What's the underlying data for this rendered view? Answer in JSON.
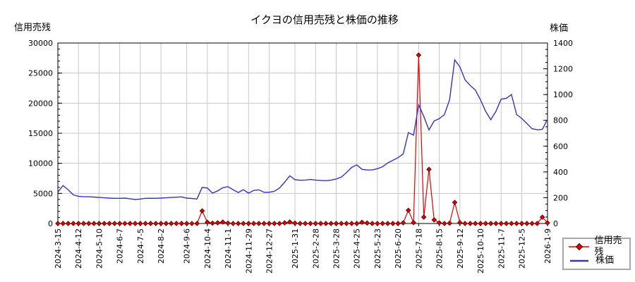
{
  "title": "イクヨの信用売残と株価の推移",
  "colors": {
    "credit_line": "#e60000",
    "credit_marker_fill": "#e60000",
    "credit_marker_edge": "#4d0000",
    "price_line": "#3333cc",
    "grid": "#c8c8c8",
    "axis": "#000000",
    "background": "#ffffff",
    "legend_border": "#a8a8a8"
  },
  "legend": {
    "items": [
      {
        "label": "信用売残",
        "marker": "diamond-on-line"
      },
      {
        "label": "株価",
        "marker": "line"
      }
    ]
  },
  "chart_data": {
    "type": "line",
    "title": "イクヨの信用売残と株価の推移",
    "weeks_total": 96,
    "grid": "on",
    "legend_position": "bottom-right-outside",
    "left_axis": {
      "label": "信用売残",
      "min": 0,
      "max": 30000,
      "major_ticks": [
        0,
        5000,
        10000,
        15000,
        20000,
        25000,
        30000
      ],
      "minor_step": 1000
    },
    "right_axis": {
      "label": "株価",
      "min": 0,
      "max": 1400,
      "major_ticks": [
        0,
        200,
        400,
        600,
        800,
        1000,
        1200,
        1400
      ],
      "minor_step": 50
    },
    "x_tick_labels": [
      {
        "text": "2024-3-15",
        "week": 0
      },
      {
        "text": "2024-4-12",
        "week": 4
      },
      {
        "text": "2024-5-10",
        "week": 8
      },
      {
        "text": "2024-6-7",
        "week": 12
      },
      {
        "text": "2024-7-5",
        "week": 16
      },
      {
        "text": "2024-8-2",
        "week": 20
      },
      {
        "text": "2024-9-6",
        "week": 25
      },
      {
        "text": "2024-10-4",
        "week": 29
      },
      {
        "text": "2024-11-1",
        "week": 33
      },
      {
        "text": "2024-11-29",
        "week": 37
      },
      {
        "text": "2024-12-27",
        "week": 41
      },
      {
        "text": "2025-1-31",
        "week": 46
      },
      {
        "text": "2025-2-28",
        "week": 50
      },
      {
        "text": "2025-3-28",
        "week": 54
      },
      {
        "text": "2025-4-25",
        "week": 58
      },
      {
        "text": "2025-5-23",
        "week": 62
      },
      {
        "text": "2025-6-20",
        "week": 66
      },
      {
        "text": "2025-7-18",
        "week": 70
      },
      {
        "text": "2025-8-15",
        "week": 74
      },
      {
        "text": "2025-9-12",
        "week": 78
      },
      {
        "text": "2025-10-10",
        "week": 82
      },
      {
        "text": "2025-11-7",
        "week": 86
      },
      {
        "text": "2025-12-5",
        "week": 90
      },
      {
        "text": "2026-1-9",
        "week": 95
      }
    ],
    "series": [
      {
        "name": "信用売残",
        "axis": "left",
        "style": "line-with-diamond-markers",
        "values": [
          0,
          0,
          0,
          0,
          0,
          0,
          0,
          0,
          0,
          0,
          0,
          0,
          0,
          0,
          0,
          0,
          0,
          0,
          0,
          0,
          0,
          0,
          0,
          0,
          0,
          0,
          0,
          0,
          2100,
          200,
          60,
          120,
          230,
          60,
          0,
          0,
          0,
          0,
          0,
          0,
          0,
          0,
          0,
          0,
          100,
          250,
          60,
          0,
          0,
          0,
          0,
          0,
          0,
          0,
          0,
          0,
          0,
          0,
          0,
          200,
          80,
          0,
          0,
          0,
          0,
          0,
          0,
          100,
          2200,
          150,
          28000,
          1050,
          9000,
          600,
          100,
          0,
          50,
          3500,
          150,
          0,
          0,
          0,
          0,
          0,
          0,
          0,
          0,
          0,
          0,
          0,
          0,
          0,
          0,
          0,
          1050,
          100
        ]
      },
      {
        "name": "株価",
        "axis": "right",
        "style": "line",
        "values": [
          242,
          294,
          262,
          222,
          211,
          207,
          207,
          205,
          202,
          199,
          197,
          195,
          195,
          197,
          192,
          186,
          190,
          195,
          196,
          195,
          197,
          199,
          202,
          204,
          206,
          197,
          194,
          190,
          280,
          275,
          235,
          253,
          277,
          286,
          262,
          240,
          262,
          235,
          257,
          261,
          242,
          242,
          250,
          275,
          320,
          370,
          340,
          335,
          337,
          341,
          337,
          334,
          332,
          337,
          345,
          360,
          395,
          435,
          455,
          420,
          415,
          415,
          425,
          440,
          470,
          490,
          510,
          540,
          705,
          685,
          920,
          830,
          725,
          795,
          813,
          845,
          960,
          1270,
          1215,
          1115,
          1070,
          1035,
          960,
          870,
          805,
          870,
          965,
          970,
          1000,
          845,
          815,
          775,
          735,
          727,
          730,
          810
        ]
      }
    ]
  }
}
